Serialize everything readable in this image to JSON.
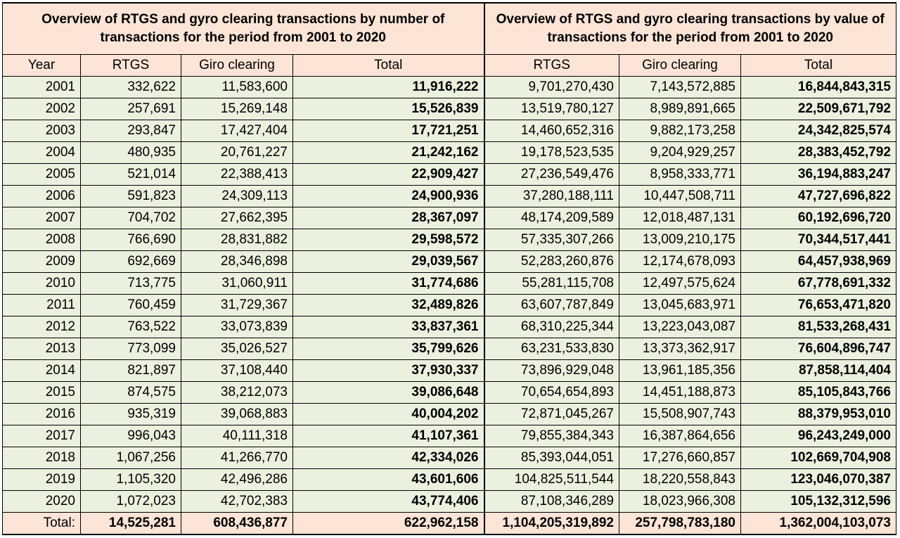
{
  "titles": {
    "by_number": "Overview of RTGS and gyro clearing transactions by number of transactions for the period from 2001 to 2020",
    "by_value": "Overview of RTGS and gyro clearing transactions by value of transactions for the period from 2001 to 2020"
  },
  "columns": [
    "Year",
    "RTGS",
    "Giro clearing",
    "Total",
    "RTGS",
    "Giro clearing",
    "Total"
  ],
  "rows": [
    {
      "year": "2001",
      "n_rtgs": "332,622",
      "n_giro": "11,583,600",
      "n_total": "11,916,222",
      "v_rtgs": "9,701,270,430",
      "v_giro": "7,143,572,885",
      "v_total": "16,844,843,315"
    },
    {
      "year": "2002",
      "n_rtgs": "257,691",
      "n_giro": "15,269,148",
      "n_total": "15,526,839",
      "v_rtgs": "13,519,780,127",
      "v_giro": "8,989,891,665",
      "v_total": "22,509,671,792"
    },
    {
      "year": "2003",
      "n_rtgs": "293,847",
      "n_giro": "17,427,404",
      "n_total": "17,721,251",
      "v_rtgs": "14,460,652,316",
      "v_giro": "9,882,173,258",
      "v_total": "24,342,825,574"
    },
    {
      "year": "2004",
      "n_rtgs": "480,935",
      "n_giro": "20,761,227",
      "n_total": "21,242,162",
      "v_rtgs": "19,178,523,535",
      "v_giro": "9,204,929,257",
      "v_total": "28,383,452,792"
    },
    {
      "year": "2005",
      "n_rtgs": "521,014",
      "n_giro": "22,388,413",
      "n_total": "22,909,427",
      "v_rtgs": "27,236,549,476",
      "v_giro": "8,958,333,771",
      "v_total": "36,194,883,247"
    },
    {
      "year": "2006",
      "n_rtgs": "591,823",
      "n_giro": "24,309,113",
      "n_total": "24,900,936",
      "v_rtgs": "37,280,188,111",
      "v_giro": "10,447,508,711",
      "v_total": "47,727,696,822"
    },
    {
      "year": "2007",
      "n_rtgs": "704,702",
      "n_giro": "27,662,395",
      "n_total": "28,367,097",
      "v_rtgs": "48,174,209,589",
      "v_giro": "12,018,487,131",
      "v_total": "60,192,696,720"
    },
    {
      "year": "2008",
      "n_rtgs": "766,690",
      "n_giro": "28,831,882",
      "n_total": "29,598,572",
      "v_rtgs": "57,335,307,266",
      "v_giro": "13,009,210,175",
      "v_total": "70,344,517,441"
    },
    {
      "year": "2009",
      "n_rtgs": "692,669",
      "n_giro": "28,346,898",
      "n_total": "29,039,567",
      "v_rtgs": "52,283,260,876",
      "v_giro": "12,174,678,093",
      "v_total": "64,457,938,969"
    },
    {
      "year": "2010",
      "n_rtgs": "713,775",
      "n_giro": "31,060,911",
      "n_total": "31,774,686",
      "v_rtgs": "55,281,115,708",
      "v_giro": "12,497,575,624",
      "v_total": "67,778,691,332"
    },
    {
      "year": "2011",
      "n_rtgs": "760,459",
      "n_giro": "31,729,367",
      "n_total": "32,489,826",
      "v_rtgs": "63,607,787,849",
      "v_giro": "13,045,683,971",
      "v_total": "76,653,471,820"
    },
    {
      "year": "2012",
      "n_rtgs": "763,522",
      "n_giro": "33,073,839",
      "n_total": "33,837,361",
      "v_rtgs": "68,310,225,344",
      "v_giro": "13,223,043,087",
      "v_total": "81,533,268,431"
    },
    {
      "year": "2013",
      "n_rtgs": "773,099",
      "n_giro": "35,026,527",
      "n_total": "35,799,626",
      "v_rtgs": "63,231,533,830",
      "v_giro": "13,373,362,917",
      "v_total": "76,604,896,747"
    },
    {
      "year": "2014",
      "n_rtgs": "821,897",
      "n_giro": "37,108,440",
      "n_total": "37,930,337",
      "v_rtgs": "73,896,929,048",
      "v_giro": "13,961,185,356",
      "v_total": "87,858,114,404"
    },
    {
      "year": "2015",
      "n_rtgs": "874,575",
      "n_giro": "38,212,073",
      "n_total": "39,086,648",
      "v_rtgs": "70,654,654,893",
      "v_giro": "14,451,188,873",
      "v_total": "85,105,843,766"
    },
    {
      "year": "2016",
      "n_rtgs": "935,319",
      "n_giro": "39,068,883",
      "n_total": "40,004,202",
      "v_rtgs": "72,871,045,267",
      "v_giro": "15,508,907,743",
      "v_total": "88,379,953,010"
    },
    {
      "year": "2017",
      "n_rtgs": "996,043",
      "n_giro": "40,111,318",
      "n_total": "41,107,361",
      "v_rtgs": "79,855,384,343",
      "v_giro": "16,387,864,656",
      "v_total": "96,243,249,000"
    },
    {
      "year": "2018",
      "n_rtgs": "1,067,256",
      "n_giro": "41,266,770",
      "n_total": "42,334,026",
      "v_rtgs": "85,393,044,051",
      "v_giro": "17,276,660,857",
      "v_total": "102,669,704,908"
    },
    {
      "year": "2019",
      "n_rtgs": "1,105,320",
      "n_giro": "42,496,286",
      "n_total": "43,601,606",
      "v_rtgs": "104,825,511,544",
      "v_giro": "18,220,558,843",
      "v_total": "123,046,070,387"
    },
    {
      "year": "2020",
      "n_rtgs": "1,072,023",
      "n_giro": "42,702,383",
      "n_total": "43,774,406",
      "v_rtgs": "87,108,346,289",
      "v_giro": "18,023,966,308",
      "v_total": "105,132,312,596"
    }
  ],
  "totals": {
    "label": "Total:",
    "n_rtgs": "14,525,281",
    "n_giro": "608,436,877",
    "n_total": "622,962,158",
    "v_rtgs": "1,104,205,319,892",
    "v_giro": "257,798,783,180",
    "v_total": "1,362,004,103,073"
  },
  "colors": {
    "header_fill": "#fce4d6",
    "body_fill": "#ebf1de",
    "border": "#000000"
  }
}
